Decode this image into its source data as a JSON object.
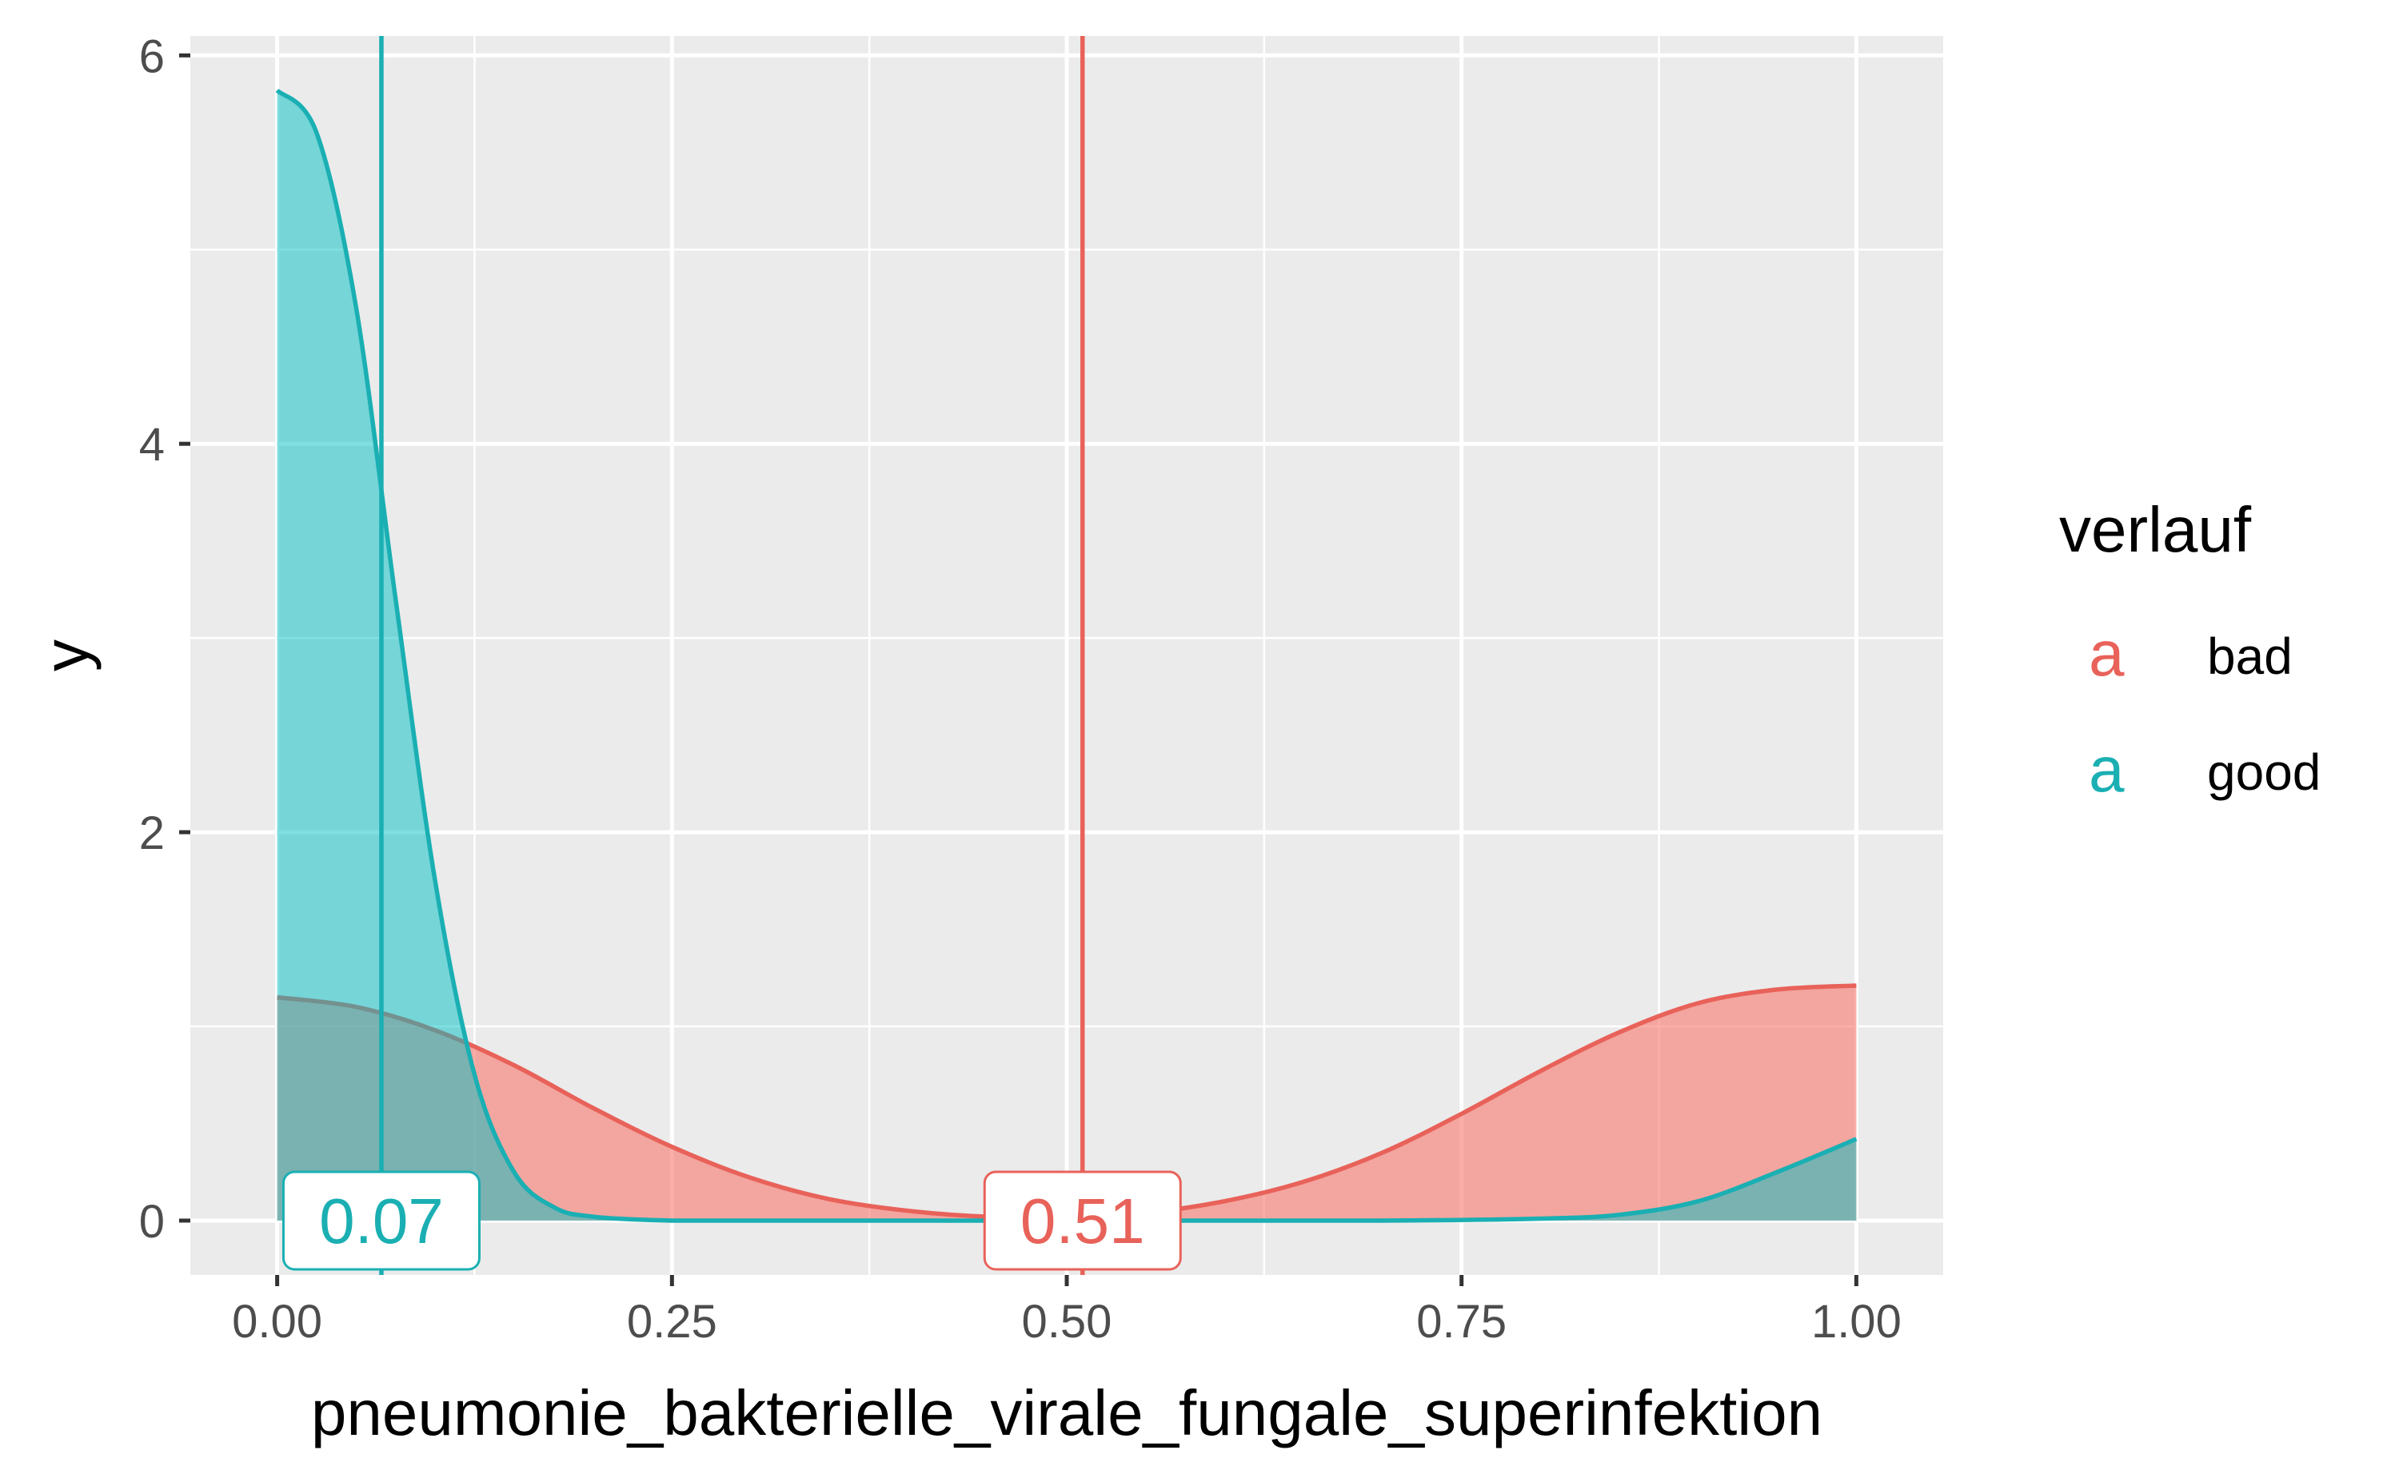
{
  "chart_data": {
    "type": "area",
    "title": "",
    "xlabel": "pneumonie_bakterielle_virale_fungale_superinfektion",
    "ylabel": "y",
    "xlim": [
      -0.055,
      1.055
    ],
    "ylim": [
      -0.28,
      6.1
    ],
    "x_ticks": [
      0.0,
      0.25,
      0.5,
      0.75,
      1.0
    ],
    "x_tick_labels": [
      "0.00",
      "0.25",
      "0.50",
      "0.75",
      "1.00"
    ],
    "y_ticks": [
      0,
      2,
      4,
      6
    ],
    "y_tick_labels": [
      "0",
      "2",
      "4",
      "6"
    ],
    "grid": true,
    "legend": {
      "title": "verlauf",
      "placement": "right",
      "key_glyph": "a"
    },
    "series": [
      {
        "name": "bad",
        "color": "#F8766D",
        "line_color": "#E8625A",
        "fill_opacity": 0.6,
        "x": [
          0.0,
          0.05,
          0.1,
          0.15,
          0.2,
          0.25,
          0.3,
          0.35,
          0.4,
          0.45,
          0.5,
          0.55,
          0.6,
          0.65,
          0.7,
          0.75,
          0.8,
          0.85,
          0.9,
          0.95,
          1.0
        ],
        "y": [
          1.15,
          1.1,
          0.98,
          0.8,
          0.58,
          0.38,
          0.22,
          0.11,
          0.05,
          0.02,
          0.02,
          0.04,
          0.1,
          0.2,
          0.35,
          0.55,
          0.77,
          0.97,
          1.12,
          1.19,
          1.21
        ],
        "mean": 0.51,
        "mean_label": "0.51"
      },
      {
        "name": "good",
        "color": "#00BFC4",
        "line_color": "#1AAFB3",
        "fill_opacity": 0.5,
        "x": [
          0.0,
          0.025,
          0.05,
          0.075,
          0.1,
          0.125,
          0.15,
          0.175,
          0.2,
          0.25,
          0.3,
          0.4,
          0.5,
          0.6,
          0.7,
          0.8,
          0.85,
          0.9,
          0.95,
          1.0
        ],
        "y": [
          5.82,
          5.6,
          4.7,
          3.2,
          1.75,
          0.75,
          0.25,
          0.07,
          0.02,
          0.0,
          0.0,
          0.0,
          0.0,
          0.0,
          0.0,
          0.01,
          0.03,
          0.1,
          0.25,
          0.42
        ],
        "mean": 0.066,
        "mean_label": "0.07"
      }
    ]
  }
}
